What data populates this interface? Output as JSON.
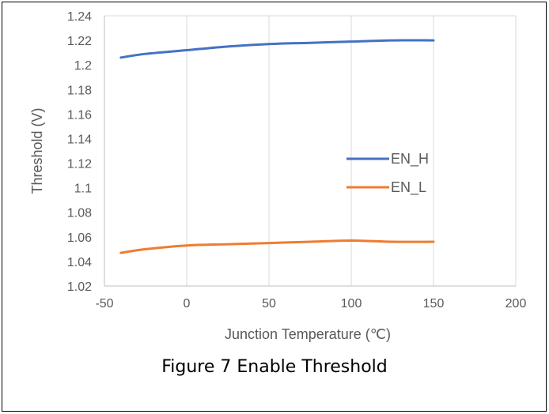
{
  "chart_data": {
    "type": "line",
    "caption": "Figure 7 Enable Threshold",
    "xlabel": "Junction Temperature (℃)",
    "ylabel": "Threshold (V)",
    "xlim": [
      -50,
      200
    ],
    "ylim": [
      1.02,
      1.24
    ],
    "x_ticks": [
      "-50",
      "0",
      "50",
      "100",
      "150",
      "200"
    ],
    "x_tick_values": [
      -50,
      0,
      50,
      100,
      150,
      200
    ],
    "y_ticks": [
      "1.02",
      "1.04",
      "1.06",
      "1.08",
      "1.1",
      "1.12",
      "1.14",
      "1.16",
      "1.18",
      "1.2",
      "1.22",
      "1.24"
    ],
    "y_tick_values": [
      1.02,
      1.04,
      1.06,
      1.08,
      1.1,
      1.12,
      1.14,
      1.16,
      1.18,
      1.2,
      1.22,
      1.24
    ],
    "grid": "vertical",
    "legend_position": "right",
    "series": [
      {
        "name": "EN_H",
        "color": "#4472C4",
        "x": [
          -40,
          -25,
          0,
          25,
          50,
          75,
          100,
          125,
          150
        ],
        "values": [
          1.206,
          1.209,
          1.212,
          1.215,
          1.217,
          1.218,
          1.219,
          1.22,
          1.22
        ]
      },
      {
        "name": "EN_L",
        "color": "#ED7D31",
        "x": [
          -40,
          -25,
          0,
          25,
          50,
          75,
          100,
          125,
          150
        ],
        "values": [
          1.047,
          1.05,
          1.053,
          1.054,
          1.055,
          1.056,
          1.057,
          1.056,
          1.056
        ]
      }
    ]
  }
}
